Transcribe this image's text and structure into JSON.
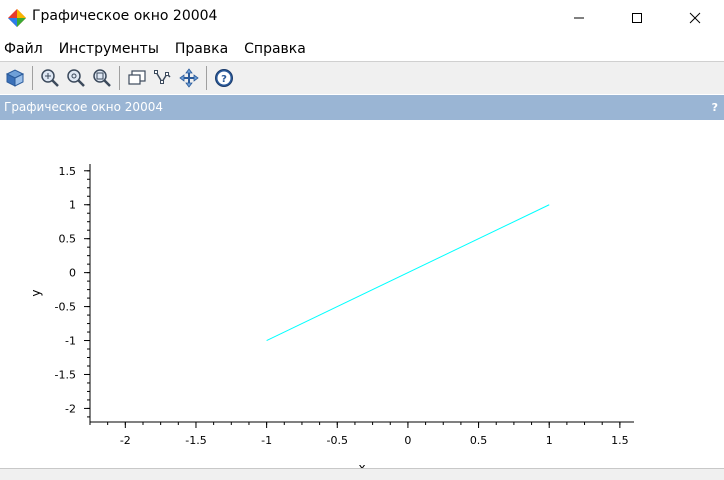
{
  "window": {
    "title": "Графическое окно 20004"
  },
  "menu": {
    "items": [
      "Файл",
      "Инструменты",
      "Правка",
      "Справка"
    ]
  },
  "toolbar": {
    "icons": [
      "rotate-3d-icon",
      "zoom-grid-icon",
      "zoom-in-icon",
      "zoom-out-icon",
      "datatip-icon",
      "edit-curve-icon",
      "pan-icon",
      "help-icon"
    ]
  },
  "panel": {
    "title": "Графическое окно 20004",
    "help_glyph": "?"
  },
  "chart_data": {
    "type": "line",
    "title": "",
    "xlabel": "x",
    "ylabel": "y",
    "xlim": [
      -2.25,
      1.6
    ],
    "ylim": [
      -2.2,
      1.6
    ],
    "xticks": [
      -2,
      -1.5,
      -1,
      -0.5,
      0,
      0.5,
      1,
      1.5
    ],
    "yticks": [
      -2,
      -1.5,
      -1,
      -0.5,
      0,
      0.5,
      1,
      1.5
    ],
    "series": [
      {
        "x": [
          -1,
          1
        ],
        "y": [
          -1,
          1
        ],
        "color": "#00ffff"
      }
    ]
  }
}
